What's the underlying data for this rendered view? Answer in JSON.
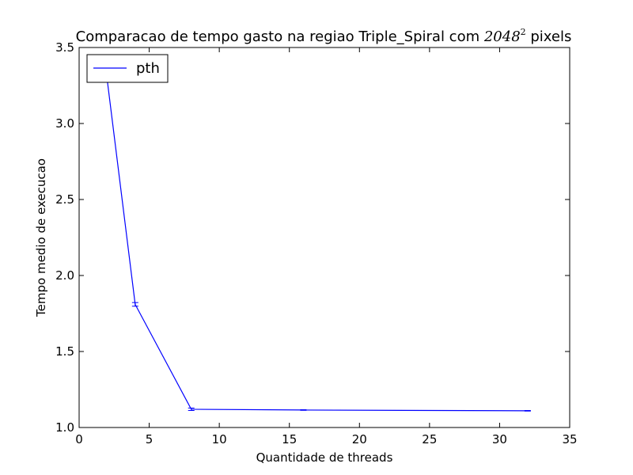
{
  "chart_data": {
    "type": "line",
    "title": {
      "prefix": "Comparacao de tempo gasto na regiao Triple_Spiral com ",
      "math_base": "2048",
      "math_exp": "2",
      "suffix": " pixels"
    },
    "xlabel": "Quantidade de threads",
    "ylabel": "Tempo medio de execucao",
    "xlim": [
      0,
      35
    ],
    "ylim": [
      1.0,
      3.5
    ],
    "xticks": [
      0,
      5,
      10,
      15,
      20,
      25,
      30,
      35
    ],
    "yticks": [
      1.0,
      1.5,
      2.0,
      2.5,
      3.0,
      3.5
    ],
    "xtick_labels": [
      "0",
      "5",
      "10",
      "15",
      "20",
      "25",
      "30",
      "35"
    ],
    "ytick_labels": [
      "1.0",
      "1.5",
      "2.0",
      "2.5",
      "3.0",
      "3.5"
    ],
    "grid": false,
    "legend_position": "top-left",
    "series": [
      {
        "name": "pth",
        "color": "#0000ff",
        "x": [
          2,
          4,
          8,
          16,
          32
        ],
        "y": [
          3.29,
          1.81,
          1.12,
          1.115,
          1.11
        ],
        "yerr": [
          0.01,
          0.012,
          0.008,
          0.002,
          0.002
        ]
      }
    ]
  }
}
